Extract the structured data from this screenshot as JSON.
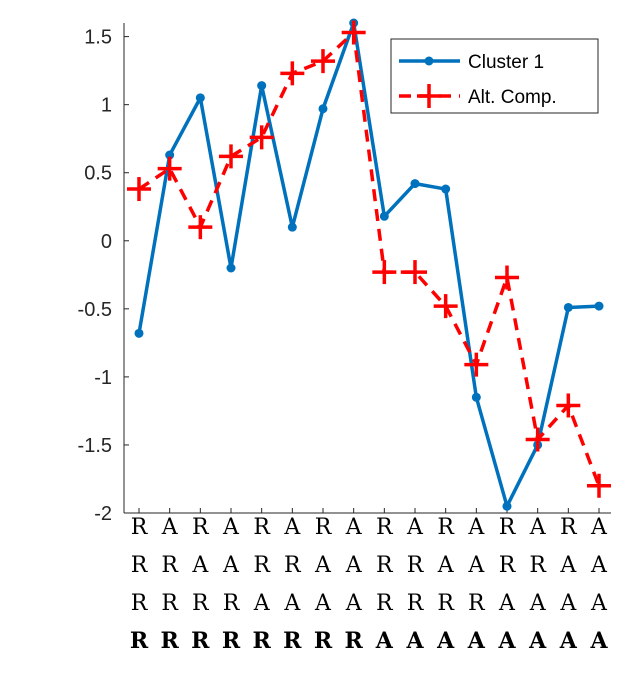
{
  "chart_data": {
    "type": "line",
    "title": "",
    "xlabel": "",
    "ylabel": "",
    "ylim": [
      -2,
      1.6
    ],
    "yticks": [
      "1.5",
      "1",
      "0.5",
      "0",
      "-0.5",
      "-1",
      "-1.5",
      "-2"
    ],
    "ytick_values": [
      1.5,
      1,
      0.5,
      0,
      -0.5,
      -1,
      -1.5,
      -2
    ],
    "grid": false,
    "legend_position": "top-right",
    "category_rows": [
      [
        "R",
        "A",
        "R",
        "A",
        "R",
        "A",
        "R",
        "A",
        "R",
        "A",
        "R",
        "A",
        "R",
        "A",
        "R",
        "A"
      ],
      [
        "R",
        "R",
        "A",
        "A",
        "R",
        "R",
        "A",
        "A",
        "R",
        "R",
        "A",
        "A",
        "R",
        "R",
        "A",
        "A"
      ],
      [
        "R",
        "R",
        "R",
        "R",
        "A",
        "A",
        "A",
        "A",
        "R",
        "R",
        "R",
        "R",
        "A",
        "A",
        "A",
        "A"
      ],
      [
        "R",
        "R",
        "R",
        "R",
        "R",
        "R",
        "R",
        "R",
        "A",
        "A",
        "A",
        "A",
        "A",
        "A",
        "A",
        "A"
      ]
    ],
    "series": [
      {
        "name": "Cluster 1",
        "color": "#0072BD",
        "style": "solid",
        "marker": "dot",
        "values": [
          -0.68,
          0.63,
          1.05,
          -0.2,
          1.14,
          0.1,
          0.97,
          1.6,
          0.18,
          0.42,
          0.38,
          -1.15,
          -1.95,
          -1.5,
          -0.49,
          -0.48
        ]
      },
      {
        "name": "Alt. Comp.",
        "color": "#FF0000",
        "style": "dashed",
        "marker": "plus",
        "values": [
          0.38,
          0.53,
          0.1,
          0.62,
          0.76,
          1.23,
          1.32,
          1.53,
          -0.23,
          -0.23,
          -0.48,
          -0.91,
          -0.27,
          -1.46,
          -1.21,
          -1.8
        ]
      }
    ]
  }
}
